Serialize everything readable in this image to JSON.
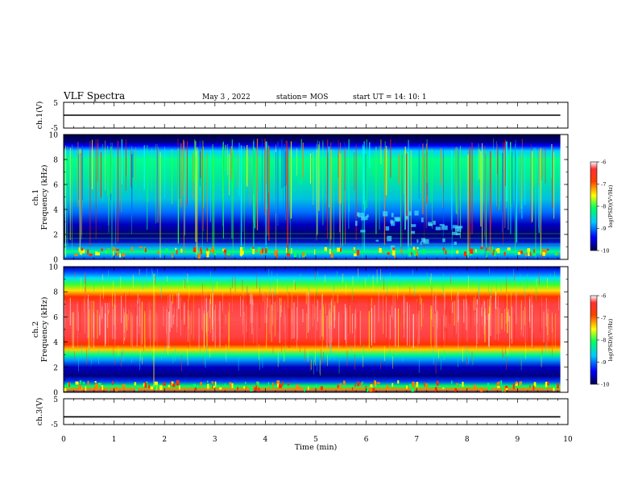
{
  "header": {
    "title": "VLF Spectra",
    "date": "May 3  , 2022",
    "station": "station= MOS",
    "start_ut": "start  UT  =   14: 10: 1"
  },
  "chart_data": [
    {
      "type": "line",
      "panel": "ch1-voltage",
      "ylabel": "ch.1(V)",
      "ylim": [
        -5,
        5
      ],
      "yticks": [
        "5",
        "-5"
      ],
      "xlim": [
        0,
        10
      ],
      "series": [
        {
          "x": [
            0,
            9.85
          ],
          "y": [
            0,
            0
          ]
        }
      ]
    },
    {
      "type": "heatmap",
      "panel": "ch1-spectrogram",
      "ylabel": "ch.1\nFrequency (kHz)",
      "ylim": [
        0,
        10
      ],
      "yticks": [
        "0",
        "2",
        "4",
        "6",
        "8",
        "10"
      ],
      "xlim": [
        0,
        10
      ],
      "data_xmax": 9.85,
      "colorbar": {
        "label": "log(PSD)(V²/Hz)",
        "range": [
          -10,
          -6
        ],
        "ticks": [
          "-6",
          "-7",
          "-8",
          "-9",
          "-10"
        ]
      }
    },
    {
      "type": "heatmap",
      "panel": "ch2-spectrogram",
      "ylabel": "ch.2\nFrequency (kHz)",
      "ylim": [
        0,
        10
      ],
      "yticks": [
        "0",
        "2",
        "4",
        "6",
        "8",
        "10"
      ],
      "xlim": [
        0,
        10
      ],
      "data_xmax": 9.85,
      "colorbar": {
        "label": "log(PSD)(V²/Hz)",
        "range": [
          -10,
          -6
        ],
        "ticks": [
          "-6",
          "-7",
          "-8",
          "-9",
          "-10"
        ]
      }
    },
    {
      "type": "line",
      "panel": "ch3-voltage",
      "ylabel": "ch.3(V)",
      "ylim": [
        -5,
        5
      ],
      "yticks": [
        "5",
        "-5"
      ],
      "xlim": [
        0,
        10
      ],
      "series": [
        {
          "x": [
            0,
            9.85
          ],
          "y": [
            -2,
            -2
          ]
        }
      ]
    }
  ],
  "xaxis": {
    "label": "Time  (min)",
    "ticks": [
      "0",
      "1",
      "2",
      "3",
      "4",
      "5",
      "6",
      "7",
      "8",
      "9",
      "10"
    ]
  }
}
